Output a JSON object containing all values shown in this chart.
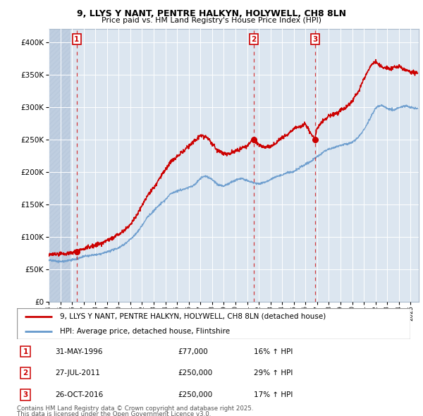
{
  "title": "9, LLYS Y NANT, PENTRE HALKYN, HOLYWELL, CH8 8LN",
  "subtitle": "Price paid vs. HM Land Registry's House Price Index (HPI)",
  "legend_line1": "9, LLYS Y NANT, PENTRE HALKYN, HOLYWELL, CH8 8LN (detached house)",
  "legend_line2": "HPI: Average price, detached house, Flintshire",
  "footer1": "Contains HM Land Registry data © Crown copyright and database right 2025.",
  "footer2": "This data is licensed under the Open Government Licence v3.0.",
  "sale_color": "#cc0000",
  "hpi_color": "#6699cc",
  "bg_color": "#dce6f0",
  "hatch_color": "#c0cede",
  "ylim": [
    0,
    420000
  ],
  "yticks": [
    0,
    50000,
    100000,
    150000,
    200000,
    250000,
    300000,
    350000,
    400000
  ],
  "xlim_start": 1994.0,
  "xlim_end": 2025.7,
  "hatch_end": 1995.9,
  "sales": [
    {
      "label": "1",
      "date": 1996.41,
      "price": 77000,
      "date_str": "31-MAY-1996",
      "pct": "16%"
    },
    {
      "label": "2",
      "date": 2011.56,
      "price": 250000,
      "date_str": "27-JUL-2011",
      "pct": "29%"
    },
    {
      "label": "3",
      "date": 2016.81,
      "price": 250000,
      "date_str": "26-OCT-2016",
      "pct": "17%"
    }
  ],
  "hpi_anchors": [
    [
      1994.0,
      65000
    ],
    [
      1994.5,
      64500
    ],
    [
      1995.0,
      64000
    ],
    [
      1995.5,
      65000
    ],
    [
      1996.0,
      67000
    ],
    [
      1996.5,
      68000
    ],
    [
      1997.0,
      72000
    ],
    [
      1997.5,
      73000
    ],
    [
      1998.0,
      74000
    ],
    [
      1998.5,
      75000
    ],
    [
      1999.0,
      78000
    ],
    [
      1999.5,
      81000
    ],
    [
      2000.0,
      85000
    ],
    [
      2000.5,
      90000
    ],
    [
      2001.0,
      97000
    ],
    [
      2001.5,
      106000
    ],
    [
      2002.0,
      118000
    ],
    [
      2002.5,
      132000
    ],
    [
      2003.0,
      140000
    ],
    [
      2003.5,
      150000
    ],
    [
      2004.0,
      158000
    ],
    [
      2004.5,
      168000
    ],
    [
      2005.0,
      172000
    ],
    [
      2005.5,
      175000
    ],
    [
      2006.0,
      178000
    ],
    [
      2006.5,
      182000
    ],
    [
      2007.0,
      192000
    ],
    [
      2007.5,
      195000
    ],
    [
      2008.0,
      190000
    ],
    [
      2008.5,
      182000
    ],
    [
      2009.0,
      180000
    ],
    [
      2009.5,
      185000
    ],
    [
      2010.0,
      190000
    ],
    [
      2010.5,
      192000
    ],
    [
      2011.0,
      188000
    ],
    [
      2011.5,
      185000
    ],
    [
      2012.0,
      183000
    ],
    [
      2012.5,
      185000
    ],
    [
      2013.0,
      188000
    ],
    [
      2013.5,
      192000
    ],
    [
      2014.0,
      195000
    ],
    [
      2014.5,
      198000
    ],
    [
      2015.0,
      200000
    ],
    [
      2015.5,
      205000
    ],
    [
      2016.0,
      210000
    ],
    [
      2016.5,
      215000
    ],
    [
      2017.0,
      222000
    ],
    [
      2017.5,
      228000
    ],
    [
      2018.0,
      232000
    ],
    [
      2018.5,
      235000
    ],
    [
      2019.0,
      238000
    ],
    [
      2019.5,
      240000
    ],
    [
      2020.0,
      242000
    ],
    [
      2020.5,
      250000
    ],
    [
      2021.0,
      262000
    ],
    [
      2021.5,
      278000
    ],
    [
      2022.0,
      295000
    ],
    [
      2022.5,
      300000
    ],
    [
      2023.0,
      296000
    ],
    [
      2023.5,
      292000
    ],
    [
      2024.0,
      295000
    ],
    [
      2024.5,
      298000
    ],
    [
      2025.0,
      295000
    ],
    [
      2025.5,
      293000
    ]
  ],
  "price_anchors": [
    [
      1994.0,
      75000
    ],
    [
      1994.5,
      76000
    ],
    [
      1995.0,
      76000
    ],
    [
      1995.5,
      76500
    ],
    [
      1996.0,
      77000
    ],
    [
      1996.4,
      77000
    ],
    [
      1996.5,
      78000
    ],
    [
      1997.0,
      82000
    ],
    [
      1997.5,
      85000
    ],
    [
      1998.0,
      88000
    ],
    [
      1998.5,
      90000
    ],
    [
      1999.0,
      94000
    ],
    [
      1999.5,
      98000
    ],
    [
      2000.0,
      105000
    ],
    [
      2000.5,
      113000
    ],
    [
      2001.0,
      122000
    ],
    [
      2001.5,
      135000
    ],
    [
      2002.0,
      152000
    ],
    [
      2002.5,
      168000
    ],
    [
      2003.0,
      178000
    ],
    [
      2003.5,
      192000
    ],
    [
      2004.0,
      205000
    ],
    [
      2004.5,
      218000
    ],
    [
      2005.0,
      225000
    ],
    [
      2005.5,
      232000
    ],
    [
      2006.0,
      240000
    ],
    [
      2006.5,
      248000
    ],
    [
      2007.0,
      255000
    ],
    [
      2007.5,
      252000
    ],
    [
      2008.0,
      242000
    ],
    [
      2008.5,
      232000
    ],
    [
      2009.0,
      225000
    ],
    [
      2009.5,
      228000
    ],
    [
      2010.0,
      232000
    ],
    [
      2010.5,
      235000
    ],
    [
      2011.0,
      240000
    ],
    [
      2011.5,
      250000
    ],
    [
      2012.0,
      242000
    ],
    [
      2012.5,
      238000
    ],
    [
      2013.0,
      240000
    ],
    [
      2013.5,
      245000
    ],
    [
      2014.0,
      252000
    ],
    [
      2014.5,
      258000
    ],
    [
      2015.0,
      265000
    ],
    [
      2015.5,
      270000
    ],
    [
      2016.0,
      272000
    ],
    [
      2016.5,
      258000
    ],
    [
      2016.8,
      250000
    ],
    [
      2017.0,
      268000
    ],
    [
      2017.5,
      278000
    ],
    [
      2018.0,
      285000
    ],
    [
      2018.5,
      290000
    ],
    [
      2019.0,
      295000
    ],
    [
      2019.5,
      300000
    ],
    [
      2020.0,
      308000
    ],
    [
      2020.5,
      322000
    ],
    [
      2021.0,
      342000
    ],
    [
      2021.5,
      358000
    ],
    [
      2022.0,
      368000
    ],
    [
      2022.5,
      360000
    ],
    [
      2023.0,
      355000
    ],
    [
      2023.5,
      358000
    ],
    [
      2024.0,
      360000
    ],
    [
      2024.5,
      355000
    ],
    [
      2025.0,
      350000
    ],
    [
      2025.5,
      348000
    ]
  ]
}
